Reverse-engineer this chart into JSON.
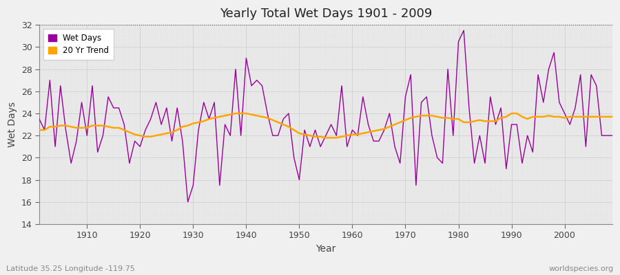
{
  "title": "Yearly Total Wet Days 1901 - 2009",
  "xlabel": "Year",
  "ylabel": "Wet Days",
  "lat_lon_label": "Latitude 35.25 Longitude -119.75",
  "watermark": "worldspecies.org",
  "ylim": [
    14,
    32
  ],
  "yticks": [
    14,
    16,
    18,
    20,
    22,
    24,
    26,
    28,
    30,
    32
  ],
  "xlim": [
    1901,
    2009
  ],
  "xticks": [
    1910,
    1920,
    1930,
    1940,
    1950,
    1960,
    1970,
    1980,
    1990,
    2000
  ],
  "fig_bg_color": "#f0f0f0",
  "plot_bg_color": "#e8e8e8",
  "wet_days_color": "#990099",
  "trend_color": "#ffa500",
  "wet_days_linewidth": 1.0,
  "trend_linewidth": 1.8,
  "years": [
    1901,
    1902,
    1903,
    1904,
    1905,
    1906,
    1907,
    1908,
    1909,
    1910,
    1911,
    1912,
    1913,
    1914,
    1915,
    1916,
    1917,
    1918,
    1919,
    1920,
    1921,
    1922,
    1923,
    1924,
    1925,
    1926,
    1927,
    1928,
    1929,
    1930,
    1931,
    1932,
    1933,
    1934,
    1935,
    1936,
    1937,
    1938,
    1939,
    1940,
    1941,
    1942,
    1943,
    1944,
    1945,
    1946,
    1947,
    1948,
    1949,
    1950,
    1951,
    1952,
    1953,
    1954,
    1955,
    1956,
    1957,
    1958,
    1959,
    1960,
    1961,
    1962,
    1963,
    1964,
    1965,
    1966,
    1967,
    1968,
    1969,
    1970,
    1971,
    1972,
    1973,
    1974,
    1975,
    1976,
    1977,
    1978,
    1979,
    1980,
    1981,
    1982,
    1983,
    1984,
    1985,
    1986,
    1987,
    1988,
    1989,
    1990,
    1991,
    1992,
    1993,
    1994,
    1995,
    1996,
    1997,
    1998,
    1999,
    2000,
    2001,
    2002,
    2003,
    2004,
    2005,
    2006,
    2007,
    2008,
    2009
  ],
  "wet_days": [
    23.5,
    22.5,
    27.0,
    21.0,
    26.5,
    22.5,
    19.5,
    21.5,
    25.0,
    22.0,
    26.5,
    20.5,
    22.0,
    25.5,
    24.5,
    24.5,
    23.0,
    19.5,
    21.5,
    21.0,
    22.5,
    23.5,
    25.0,
    23.0,
    24.5,
    21.5,
    24.5,
    21.5,
    16.0,
    17.5,
    22.5,
    25.0,
    23.5,
    25.0,
    17.5,
    23.0,
    22.0,
    28.0,
    22.0,
    29.0,
    26.5,
    27.0,
    26.5,
    24.0,
    22.0,
    22.0,
    23.5,
    24.0,
    20.0,
    18.0,
    22.5,
    21.0,
    22.5,
    21.0,
    22.0,
    23.0,
    22.0,
    26.5,
    21.0,
    22.5,
    22.0,
    25.5,
    23.0,
    21.5,
    21.5,
    22.5,
    24.0,
    21.0,
    19.5,
    25.5,
    27.5,
    17.5,
    25.0,
    25.5,
    22.0,
    20.0,
    19.5,
    28.0,
    22.0,
    30.5,
    31.5,
    24.5,
    19.5,
    22.0,
    19.5,
    25.5,
    23.0,
    24.5,
    19.0,
    23.0,
    23.0,
    19.5,
    22.0,
    20.5,
    27.5,
    25.0,
    28.0,
    29.5,
    25.0,
    24.0,
    23.0,
    24.5,
    27.5,
    21.0,
    27.5,
    26.5,
    22.0,
    22.0,
    22.0
  ],
  "trend": [
    22.5,
    22.5,
    22.8,
    22.8,
    22.9,
    22.9,
    22.8,
    22.7,
    22.7,
    22.7,
    22.9,
    22.9,
    22.9,
    22.8,
    22.7,
    22.7,
    22.5,
    22.3,
    22.1,
    22.0,
    21.9,
    21.9,
    22.0,
    22.1,
    22.2,
    22.3,
    22.5,
    22.8,
    22.9,
    23.1,
    23.2,
    23.3,
    23.5,
    23.6,
    23.7,
    23.8,
    23.9,
    24.0,
    24.0,
    24.0,
    23.9,
    23.8,
    23.7,
    23.6,
    23.4,
    23.2,
    23.0,
    22.8,
    22.5,
    22.2,
    22.1,
    22.0,
    21.9,
    21.9,
    21.8,
    21.8,
    21.8,
    21.9,
    22.0,
    22.1,
    22.1,
    22.2,
    22.3,
    22.4,
    22.5,
    22.6,
    22.8,
    23.0,
    23.2,
    23.4,
    23.6,
    23.7,
    23.8,
    23.8,
    23.8,
    23.7,
    23.6,
    23.6,
    23.5,
    23.5,
    23.2,
    23.2,
    23.3,
    23.4,
    23.3,
    23.3,
    23.3,
    23.6,
    23.7,
    24.0,
    24.0,
    23.7,
    23.5,
    23.7,
    23.7,
    23.7,
    23.8,
    23.7,
    23.7,
    23.6,
    23.7,
    23.7,
    23.7,
    23.7,
    23.7,
    23.7,
    23.7,
    23.7,
    23.7
  ]
}
